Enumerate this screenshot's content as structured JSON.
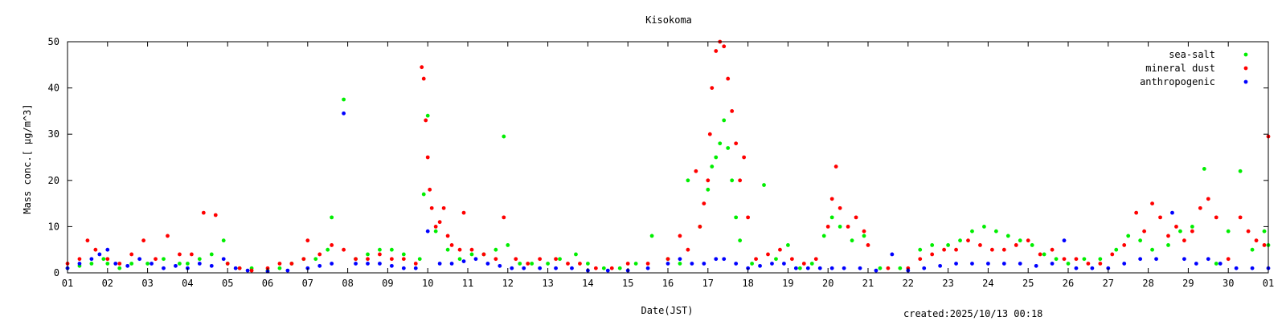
{
  "footer": {
    "created": "created:2025/10/13 00:18"
  },
  "chart_data": {
    "type": "scatter",
    "title": "Kisokoma",
    "xlabel": "Date(JST)",
    "ylabel": "Mass conc.[ µg/m^3]",
    "ylim": [
      0,
      50
    ],
    "yticks": [
      "0",
      "10",
      "20",
      "30",
      "40",
      "50"
    ],
    "xlim": [
      0,
      30
    ],
    "xtick_labels": [
      "01",
      "02",
      "03",
      "04",
      "05",
      "06",
      "07",
      "08",
      "09",
      "10",
      "11",
      "12",
      "13",
      "14",
      "15",
      "16",
      "17",
      "18",
      "19",
      "20",
      "21",
      "22",
      "23",
      "24",
      "25",
      "26",
      "27",
      "28",
      "29",
      "30",
      "01"
    ],
    "legend_position": "top-right",
    "grid": false,
    "series": [
      {
        "name": "sea-salt",
        "color": "#00ee00",
        "points": [
          [
            0,
            1
          ],
          [
            0.3,
            1.5
          ],
          [
            0.6,
            2
          ],
          [
            0.9,
            3
          ],
          [
            1.0,
            2
          ],
          [
            1.3,
            1
          ],
          [
            1.6,
            2
          ],
          [
            2.0,
            2
          ],
          [
            2.4,
            3
          ],
          [
            2.8,
            2
          ],
          [
            3.0,
            2
          ],
          [
            3.3,
            3
          ],
          [
            3.6,
            4
          ],
          [
            3.9,
            7
          ],
          [
            4.0,
            2
          ],
          [
            4.3,
            1
          ],
          [
            4.6,
            1
          ],
          [
            5.0,
            0.5
          ],
          [
            5.3,
            1
          ],
          [
            5.6,
            2
          ],
          [
            5.9,
            3
          ],
          [
            6.2,
            3
          ],
          [
            6.5,
            5
          ],
          [
            6.6,
            12
          ],
          [
            6.9,
            37.5
          ],
          [
            7.2,
            3
          ],
          [
            7.5,
            4
          ],
          [
            7.8,
            5
          ],
          [
            8.1,
            5
          ],
          [
            8.4,
            4
          ],
          [
            8.8,
            3
          ],
          [
            8.9,
            17
          ],
          [
            9.0,
            34
          ],
          [
            9.2,
            9
          ],
          [
            9.5,
            5
          ],
          [
            9.8,
            3
          ],
          [
            10.1,
            4
          ],
          [
            10.4,
            4
          ],
          [
            10.7,
            5
          ],
          [
            10.9,
            29.5
          ],
          [
            11.0,
            6
          ],
          [
            11.3,
            2
          ],
          [
            11.6,
            2
          ],
          [
            12.0,
            2
          ],
          [
            12.3,
            3
          ],
          [
            12.7,
            4
          ],
          [
            13.0,
            2
          ],
          [
            13.4,
            1
          ],
          [
            13.8,
            1
          ],
          [
            14.2,
            2
          ],
          [
            14.6,
            8
          ],
          [
            15.0,
            3
          ],
          [
            15.3,
            2
          ],
          [
            15.5,
            20
          ],
          [
            15.8,
            10
          ],
          [
            16.0,
            18
          ],
          [
            16.1,
            23
          ],
          [
            16.2,
            25
          ],
          [
            16.3,
            28
          ],
          [
            16.4,
            33
          ],
          [
            16.5,
            27
          ],
          [
            16.6,
            20
          ],
          [
            16.7,
            12
          ],
          [
            16.8,
            7
          ],
          [
            17.1,
            2
          ],
          [
            17.4,
            19
          ],
          [
            17.7,
            3
          ],
          [
            18.0,
            6
          ],
          [
            18.3,
            1
          ],
          [
            18.6,
            2
          ],
          [
            18.9,
            8
          ],
          [
            19.1,
            12
          ],
          [
            19.3,
            10
          ],
          [
            19.6,
            7
          ],
          [
            19.9,
            8
          ],
          [
            20.3,
            1
          ],
          [
            20.8,
            1
          ],
          [
            21.3,
            5
          ],
          [
            21.6,
            6
          ],
          [
            22.0,
            6
          ],
          [
            22.3,
            7
          ],
          [
            22.6,
            9
          ],
          [
            22.9,
            10
          ],
          [
            23.2,
            9
          ],
          [
            23.5,
            8
          ],
          [
            23.8,
            7
          ],
          [
            24.1,
            6
          ],
          [
            24.4,
            4
          ],
          [
            24.7,
            3
          ],
          [
            25.0,
            2
          ],
          [
            25.4,
            3
          ],
          [
            25.8,
            3
          ],
          [
            26.2,
            5
          ],
          [
            26.5,
            8
          ],
          [
            26.8,
            7
          ],
          [
            27.1,
            5
          ],
          [
            27.5,
            6
          ],
          [
            27.8,
            9
          ],
          [
            28.1,
            10
          ],
          [
            28.4,
            22.5
          ],
          [
            28.7,
            2
          ],
          [
            29.0,
            9
          ],
          [
            29.3,
            22
          ],
          [
            29.6,
            5
          ],
          [
            29.9,
            9
          ],
          [
            30.0,
            6
          ]
        ]
      },
      {
        "name": "mineral dust",
        "color": "#ff0000",
        "points": [
          [
            0,
            2
          ],
          [
            0.3,
            3
          ],
          [
            0.5,
            7
          ],
          [
            0.7,
            5
          ],
          [
            1.0,
            3
          ],
          [
            1.3,
            2
          ],
          [
            1.6,
            4
          ],
          [
            1.9,
            7
          ],
          [
            2.2,
            3
          ],
          [
            2.5,
            8
          ],
          [
            2.8,
            4
          ],
          [
            3.1,
            4
          ],
          [
            3.4,
            13
          ],
          [
            3.7,
            12.5
          ],
          [
            4.0,
            2
          ],
          [
            4.3,
            1
          ],
          [
            4.6,
            0.5
          ],
          [
            5.0,
            1
          ],
          [
            5.3,
            2
          ],
          [
            5.6,
            2
          ],
          [
            5.9,
            3
          ],
          [
            6.0,
            7
          ],
          [
            6.3,
            4
          ],
          [
            6.6,
            6
          ],
          [
            6.9,
            5
          ],
          [
            7.2,
            3
          ],
          [
            7.5,
            3
          ],
          [
            7.8,
            4
          ],
          [
            8.1,
            3
          ],
          [
            8.4,
            3
          ],
          [
            8.7,
            2
          ],
          [
            8.85,
            44.5
          ],
          [
            8.9,
            42
          ],
          [
            8.95,
            33
          ],
          [
            9.0,
            25
          ],
          [
            9.05,
            18
          ],
          [
            9.1,
            14
          ],
          [
            9.2,
            10
          ],
          [
            9.3,
            11
          ],
          [
            9.4,
            14
          ],
          [
            9.5,
            8
          ],
          [
            9.6,
            6
          ],
          [
            9.8,
            5
          ],
          [
            9.9,
            13
          ],
          [
            10.1,
            5
          ],
          [
            10.4,
            4
          ],
          [
            10.7,
            3
          ],
          [
            10.9,
            12
          ],
          [
            11.2,
            3
          ],
          [
            11.5,
            2
          ],
          [
            11.8,
            3
          ],
          [
            12.2,
            3
          ],
          [
            12.5,
            2
          ],
          [
            12.8,
            2
          ],
          [
            13.2,
            1
          ],
          [
            13.6,
            1
          ],
          [
            14.0,
            2
          ],
          [
            14.5,
            2
          ],
          [
            15.0,
            3
          ],
          [
            15.3,
            8
          ],
          [
            15.5,
            5
          ],
          [
            15.7,
            22
          ],
          [
            15.8,
            10
          ],
          [
            15.9,
            15
          ],
          [
            16.0,
            20
          ],
          [
            16.05,
            30
          ],
          [
            16.1,
            40
          ],
          [
            16.2,
            48
          ],
          [
            16.3,
            50
          ],
          [
            16.4,
            49
          ],
          [
            16.5,
            42
          ],
          [
            16.6,
            35
          ],
          [
            16.7,
            28
          ],
          [
            16.8,
            20
          ],
          [
            16.9,
            25
          ],
          [
            17.0,
            12
          ],
          [
            17.2,
            3
          ],
          [
            17.5,
            4
          ],
          [
            17.8,
            5
          ],
          [
            18.1,
            3
          ],
          [
            18.4,
            2
          ],
          [
            18.7,
            3
          ],
          [
            19.0,
            10
          ],
          [
            19.1,
            16
          ],
          [
            19.2,
            23
          ],
          [
            19.3,
            14
          ],
          [
            19.5,
            10
          ],
          [
            19.7,
            12
          ],
          [
            19.9,
            9
          ],
          [
            20.0,
            6
          ],
          [
            20.5,
            1
          ],
          [
            21.0,
            1
          ],
          [
            21.3,
            3
          ],
          [
            21.6,
            4
          ],
          [
            21.9,
            5
          ],
          [
            22.2,
            5
          ],
          [
            22.5,
            7
          ],
          [
            22.8,
            6
          ],
          [
            23.1,
            5
          ],
          [
            23.4,
            5
          ],
          [
            23.7,
            6
          ],
          [
            24.0,
            7
          ],
          [
            24.3,
            4
          ],
          [
            24.6,
            5
          ],
          [
            24.9,
            3
          ],
          [
            25.2,
            3
          ],
          [
            25.5,
            2
          ],
          [
            25.8,
            2
          ],
          [
            26.1,
            4
          ],
          [
            26.4,
            6
          ],
          [
            26.7,
            13
          ],
          [
            26.9,
            9
          ],
          [
            27.1,
            15
          ],
          [
            27.3,
            12
          ],
          [
            27.5,
            8
          ],
          [
            27.7,
            10
          ],
          [
            27.9,
            7
          ],
          [
            28.1,
            9
          ],
          [
            28.3,
            14
          ],
          [
            28.5,
            16
          ],
          [
            28.7,
            12
          ],
          [
            29.0,
            3
          ],
          [
            29.3,
            12
          ],
          [
            29.5,
            9
          ],
          [
            29.7,
            7
          ],
          [
            29.9,
            6
          ],
          [
            30.0,
            29.5
          ]
        ]
      },
      {
        "name": "anthropogenic",
        "color": "#0000ff",
        "points": [
          [
            0,
            1
          ],
          [
            0.3,
            2
          ],
          [
            0.6,
            3
          ],
          [
            0.8,
            4
          ],
          [
            1.0,
            5
          ],
          [
            1.2,
            2
          ],
          [
            1.5,
            1.5
          ],
          [
            1.8,
            3
          ],
          [
            2.1,
            2
          ],
          [
            2.4,
            1
          ],
          [
            2.7,
            1.5
          ],
          [
            3.0,
            1
          ],
          [
            3.3,
            2
          ],
          [
            3.6,
            1.5
          ],
          [
            3.9,
            3
          ],
          [
            4.2,
            1
          ],
          [
            4.5,
            0.5
          ],
          [
            5.0,
            0.3
          ],
          [
            5.5,
            0.5
          ],
          [
            6.0,
            1
          ],
          [
            6.3,
            1.5
          ],
          [
            6.6,
            2
          ],
          [
            6.9,
            34.5
          ],
          [
            7.2,
            2
          ],
          [
            7.5,
            2
          ],
          [
            7.8,
            2
          ],
          [
            8.1,
            1.5
          ],
          [
            8.4,
            1
          ],
          [
            8.7,
            1
          ],
          [
            9.0,
            9
          ],
          [
            9.3,
            2
          ],
          [
            9.6,
            2
          ],
          [
            9.9,
            2.5
          ],
          [
            10.2,
            3
          ],
          [
            10.5,
            2
          ],
          [
            10.8,
            1.5
          ],
          [
            11.1,
            1
          ],
          [
            11.4,
            1
          ],
          [
            11.8,
            1
          ],
          [
            12.2,
            1
          ],
          [
            12.6,
            1
          ],
          [
            13.0,
            0.5
          ],
          [
            13.5,
            0.5
          ],
          [
            14.0,
            0.5
          ],
          [
            14.5,
            1
          ],
          [
            15.0,
            2
          ],
          [
            15.3,
            3
          ],
          [
            15.6,
            2
          ],
          [
            15.9,
            2
          ],
          [
            16.2,
            3
          ],
          [
            16.4,
            3
          ],
          [
            16.7,
            2
          ],
          [
            17.0,
            1
          ],
          [
            17.3,
            1.5
          ],
          [
            17.6,
            2
          ],
          [
            17.9,
            2
          ],
          [
            18.2,
            1
          ],
          [
            18.5,
            1
          ],
          [
            18.8,
            1
          ],
          [
            19.1,
            1
          ],
          [
            19.4,
            1
          ],
          [
            19.8,
            1
          ],
          [
            20.2,
            0.5
          ],
          [
            20.6,
            4
          ],
          [
            21.0,
            0.5
          ],
          [
            21.4,
            1
          ],
          [
            21.8,
            1.5
          ],
          [
            22.2,
            2
          ],
          [
            22.6,
            2
          ],
          [
            23.0,
            2
          ],
          [
            23.4,
            2
          ],
          [
            23.8,
            2
          ],
          [
            24.2,
            1.5
          ],
          [
            24.6,
            2
          ],
          [
            24.9,
            7
          ],
          [
            25.2,
            1
          ],
          [
            25.6,
            1
          ],
          [
            26.0,
            1
          ],
          [
            26.4,
            2
          ],
          [
            26.8,
            3
          ],
          [
            27.2,
            3
          ],
          [
            27.6,
            13
          ],
          [
            27.9,
            3
          ],
          [
            28.2,
            2
          ],
          [
            28.5,
            3
          ],
          [
            28.8,
            2
          ],
          [
            29.2,
            1
          ],
          [
            29.6,
            1
          ],
          [
            30.0,
            1
          ]
        ]
      }
    ]
  }
}
